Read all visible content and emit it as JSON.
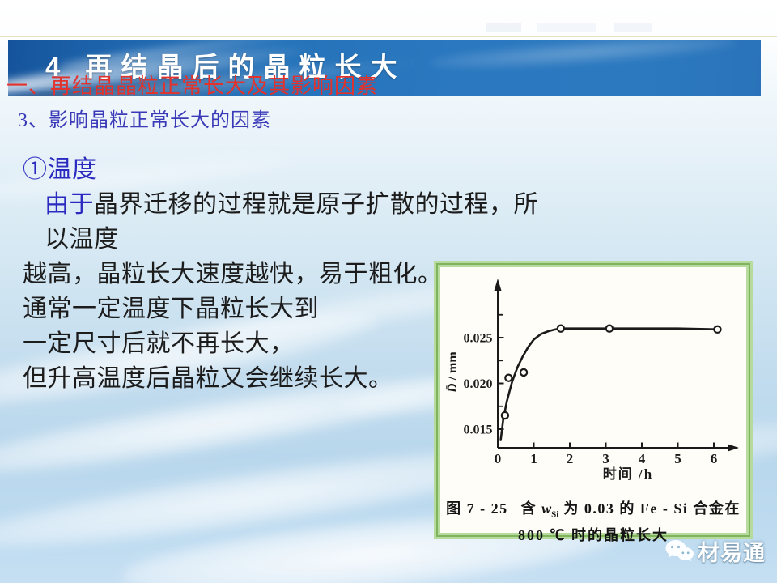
{
  "slide": {
    "banner_title": "4 再结晶后的晶粒长大",
    "red_subtitle": "一、再结晶晶粒正常长大及其影响因素",
    "section_heading": "3、影响晶粒正常长大的因素"
  },
  "body": {
    "point_label": "①温度",
    "lead_in": "由于",
    "line1_rest": "晶界迁移的过程就是原子扩散的过程，所以温度",
    "line2": "越高，晶粒长大速度越快，易于粗化。",
    "line3": "通常一定温度下晶粒长大到",
    "line4": "一定尺寸后就不再长大，",
    "line5": "但升高温度后晶粒又会继续长大。"
  },
  "figure": {
    "caption_prefix": "图 7 - 25",
    "caption_before_w": "含 ",
    "caption_w": "w",
    "caption_w_sub": "Si",
    "caption_after_w": " 为 0.03 的 Fe - Si 合金在",
    "caption_line2": "800 ℃ 时的晶粒长大"
  },
  "watermark": {
    "text": "材易通",
    "icon": "wechat-bubbles-icon"
  },
  "chart_data": {
    "type": "scatter",
    "title": "",
    "xlabel": "时间 /h",
    "ylabel": "D̄ / mm",
    "xlim": [
      0,
      6.6
    ],
    "ylim": [
      0.013,
      0.028
    ],
    "x_ticks": [
      0,
      1,
      2,
      3,
      4,
      5,
      6
    ],
    "y_major_ticks": [
      0.015,
      0.02,
      0.025
    ],
    "y_major_labels": [
      "0.015",
      "0.020",
      "0.025"
    ],
    "y_minor_ticks": [
      0.0175,
      0.0225,
      0.0275
    ],
    "grid": false,
    "legend": "none",
    "points": [
      [
        0.2,
        0.0165
      ],
      [
        0.3,
        0.0206
      ],
      [
        0.72,
        0.0212
      ],
      [
        1.75,
        0.026
      ],
      [
        3.1,
        0.026
      ],
      [
        6.1,
        0.0259
      ]
    ],
    "curve": [
      [
        0.08,
        0.0138
      ],
      [
        0.15,
        0.016
      ],
      [
        0.25,
        0.018
      ],
      [
        0.4,
        0.0202
      ],
      [
        0.55,
        0.0218
      ],
      [
        0.7,
        0.023
      ],
      [
        0.85,
        0.024
      ],
      [
        1.0,
        0.0248
      ],
      [
        1.2,
        0.0254
      ],
      [
        1.4,
        0.0257
      ],
      [
        1.6,
        0.0259
      ],
      [
        1.8,
        0.026
      ],
      [
        2.2,
        0.026
      ],
      [
        3.0,
        0.026
      ],
      [
        4.0,
        0.026
      ],
      [
        5.0,
        0.026
      ],
      [
        6.15,
        0.0259
      ]
    ],
    "description": "Mean grain diameter vs annealing time: rapid growth then plateau at ~0.026 mm"
  },
  "colors": {
    "banner_blue": "#2a74bb",
    "red_text": "#e3312b",
    "heading_blue": "#3a3ab8",
    "body_blue": "#2a2ac0",
    "body_black": "#1c1c1c",
    "frame_green_light": "#b7db9d",
    "frame_green_dark": "#7fb35e",
    "figure_bg": "#fffdf8",
    "chart_ink": "#1a1a1a"
  }
}
